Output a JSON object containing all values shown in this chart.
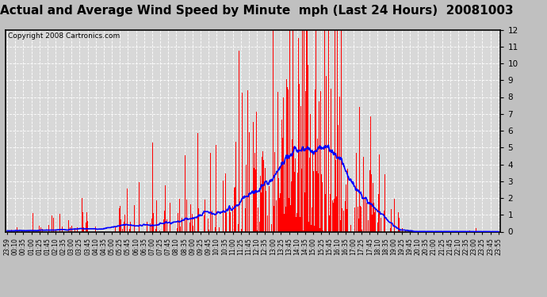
{
  "title": "Actual and Average Wind Speed by Minute  mph (Last 24 Hours)  20081003",
  "copyright": "Copyright 2008 Cartronics.com",
  "ylim": [
    0.0,
    12.0
  ],
  "yticks": [
    0.0,
    1.0,
    2.0,
    3.0,
    4.0,
    5.0,
    6.0,
    7.0,
    8.0,
    9.0,
    10.0,
    11.0,
    12.0
  ],
  "bar_color": "#ff0000",
  "line_color": "#0000ff",
  "bg_color": "#d8d8d8",
  "grid_color": "#ffffff",
  "fig_color": "#c0c0c0",
  "title_fontsize": 11,
  "copyright_fontsize": 6.5,
  "x_tick_labels": [
    "23:59",
    "00:10",
    "00:35",
    "01:00",
    "01:25",
    "01:45",
    "02:10",
    "02:35",
    "03:00",
    "03:25",
    "03:45",
    "04:10",
    "04:35",
    "05:00",
    "05:25",
    "05:45",
    "06:10",
    "06:35",
    "07:00",
    "07:25",
    "07:45",
    "08:10",
    "08:35",
    "09:00",
    "09:25",
    "09:45",
    "10:10",
    "10:35",
    "11:00",
    "11:25",
    "11:45",
    "12:10",
    "12:35",
    "13:00",
    "13:25",
    "13:45",
    "14:10",
    "14:35",
    "15:00",
    "15:25",
    "15:45",
    "16:10",
    "16:35",
    "17:00",
    "17:25",
    "17:45",
    "18:10",
    "18:35",
    "19:00",
    "19:25",
    "19:45",
    "20:10",
    "20:35",
    "21:00",
    "21:25",
    "21:45",
    "22:10",
    "22:35",
    "23:00",
    "23:25",
    "23:45",
    "23:55"
  ]
}
